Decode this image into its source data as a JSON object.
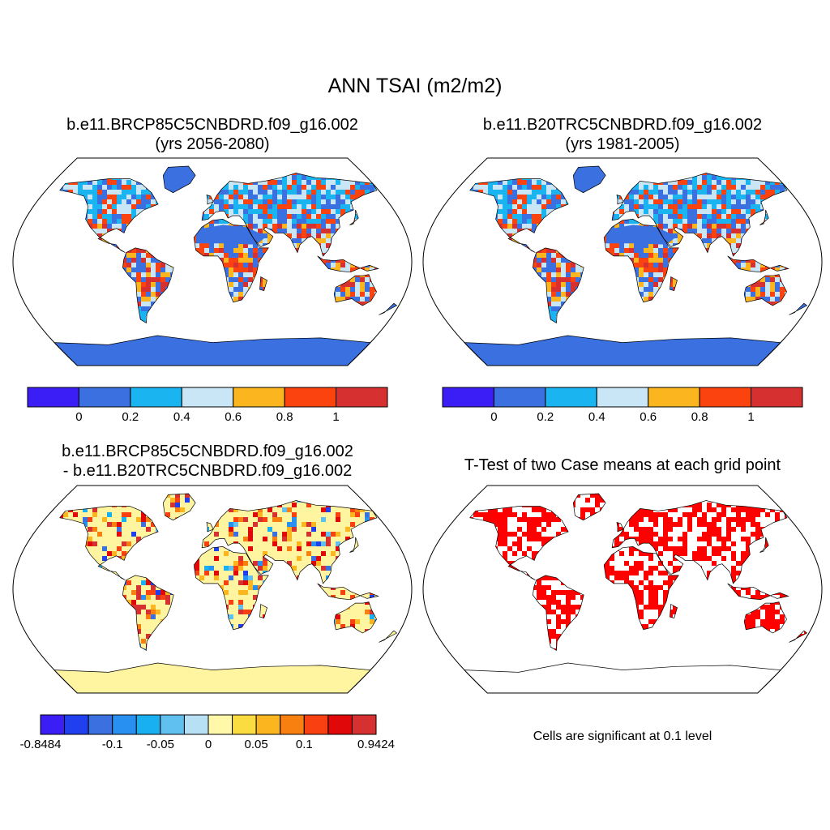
{
  "figure": {
    "title": "ANN TSAI (m2/m2)"
  },
  "panels": {
    "top_left": {
      "title_line1": "b.e11.BRCP85C5CNBDRD.f09_g16.002",
      "title_line2": "(yrs 2056-2080)"
    },
    "top_right": {
      "title_line1": "b.e11.B20TRC5CNBDRD.f09_g16.002",
      "title_line2": "(yrs 1981-2005)"
    },
    "bottom_left": {
      "title_line1": "b.e11.BRCP85C5CNBDRD.f09_g16.002",
      "title_line2": "- b.e11.B20TRC5CNBDRD.f09_g16.002"
    },
    "bottom_right": {
      "title_line1": "T-Test of two Case means at each grid point",
      "note": "Cells are significant at 0.1 level"
    }
  },
  "colorbars": {
    "absolute": {
      "colors": [
        "#3b1ef5",
        "#3a70e0",
        "#1ab4f0",
        "#c8e6f5",
        "#fbb51e",
        "#fb4310",
        "#d73030"
      ],
      "labels": [
        "0",
        "0.2",
        "0.4",
        "0.6",
        "0.8",
        "1"
      ]
    },
    "difference": {
      "colors": [
        "#3a1ef5",
        "#2040f0",
        "#3a70e0",
        "#2890f0",
        "#18b0f0",
        "#60c0f0",
        "#b8e0f5",
        "#fff8a8",
        "#fbdc40",
        "#fbb51e",
        "#f88010",
        "#f84010",
        "#e00808",
        "#d73030"
      ],
      "labels": [
        "-0.8484",
        "-0.1",
        "-0.05",
        "0",
        "0.05",
        "0.1",
        "0.9424"
      ]
    }
  },
  "map_colors": {
    "ocean": "#ffffff",
    "outline": "#000000",
    "significant": "#ff0000",
    "diff_base": "#fff4a0",
    "abs_mix": [
      "#3a70e0",
      "#1ab4f0",
      "#c8e6f5",
      "#fbb51e",
      "#fb4310",
      "#d73030"
    ]
  }
}
